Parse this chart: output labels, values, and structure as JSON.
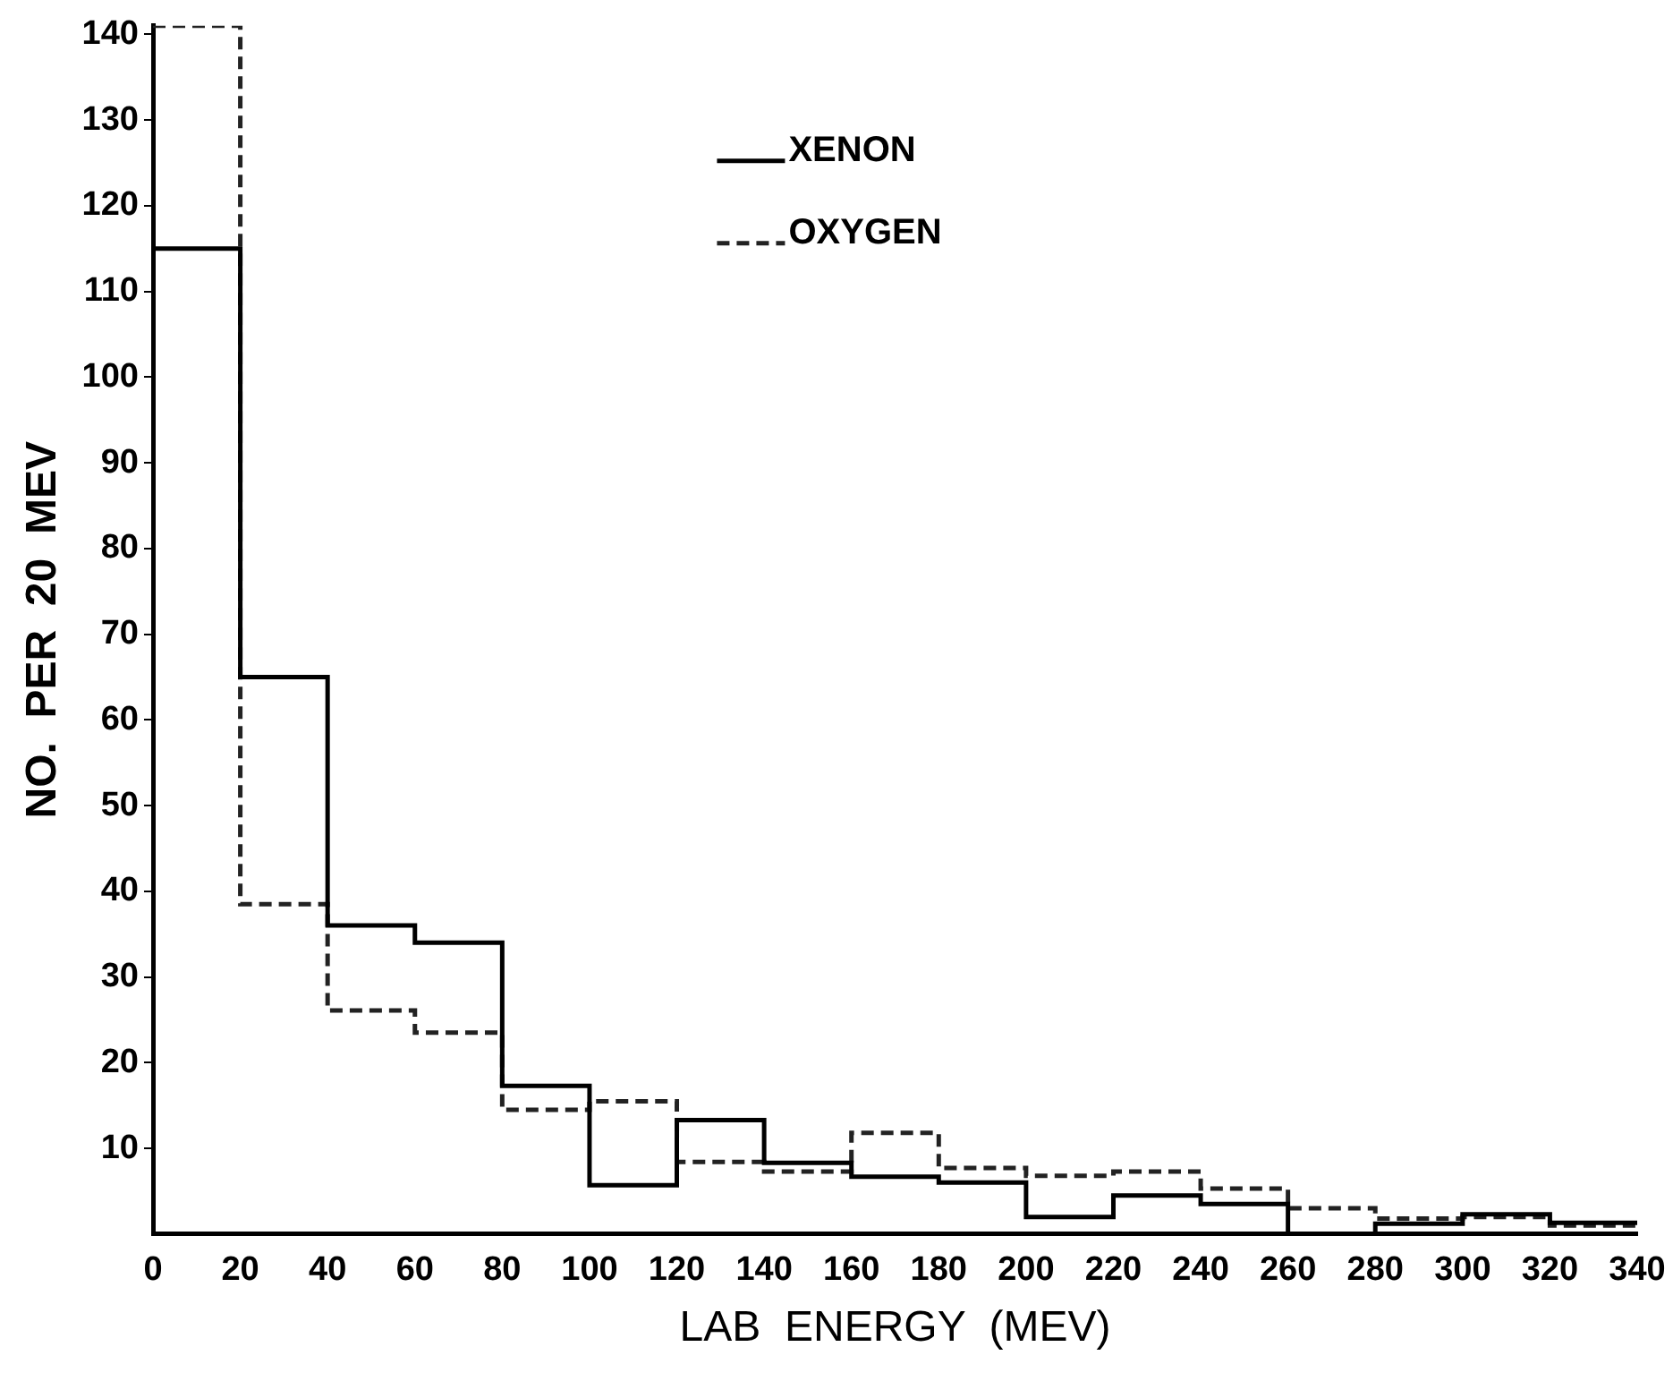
{
  "chart_data": {
    "type": "histogram",
    "xlabel": "LAB  ENERGY  (MEV)",
    "ylabel": "NO.  PER  20  MEV",
    "bins": [
      0,
      20,
      40,
      60,
      80,
      100,
      120,
      140,
      160,
      180,
      200,
      220,
      240,
      260,
      280,
      300,
      320,
      340
    ],
    "series": [
      {
        "name": "XENON",
        "color": "#000000",
        "line_style": "solid",
        "values": [
          115,
          65,
          36,
          34,
          17.3,
          5.7,
          13.3,
          8.3,
          6.7,
          6,
          2,
          4.5,
          3.5,
          0,
          1.2,
          2.3,
          1.3
        ]
      },
      {
        "name": "OXYGEN",
        "color": "#222222",
        "line_style": "dashed",
        "values": [
          141,
          38.5,
          26.1,
          23.5,
          14.5,
          15.5,
          8.4,
          7.3,
          11.8,
          7.7,
          6.8,
          7.3,
          5.3,
          3,
          1.8,
          2,
          1
        ]
      }
    ],
    "xlim": [
      0,
      340
    ],
    "xticks": [
      0,
      20,
      40,
      60,
      80,
      100,
      120,
      140,
      160,
      180,
      200,
      220,
      240,
      260,
      280,
      300,
      320,
      340
    ],
    "ylim": [
      0,
      141
    ],
    "yticks": [
      10,
      20,
      30,
      40,
      50,
      60,
      70,
      80,
      90,
      100,
      110,
      120,
      130,
      140
    ],
    "grid": false,
    "legend": "top"
  }
}
